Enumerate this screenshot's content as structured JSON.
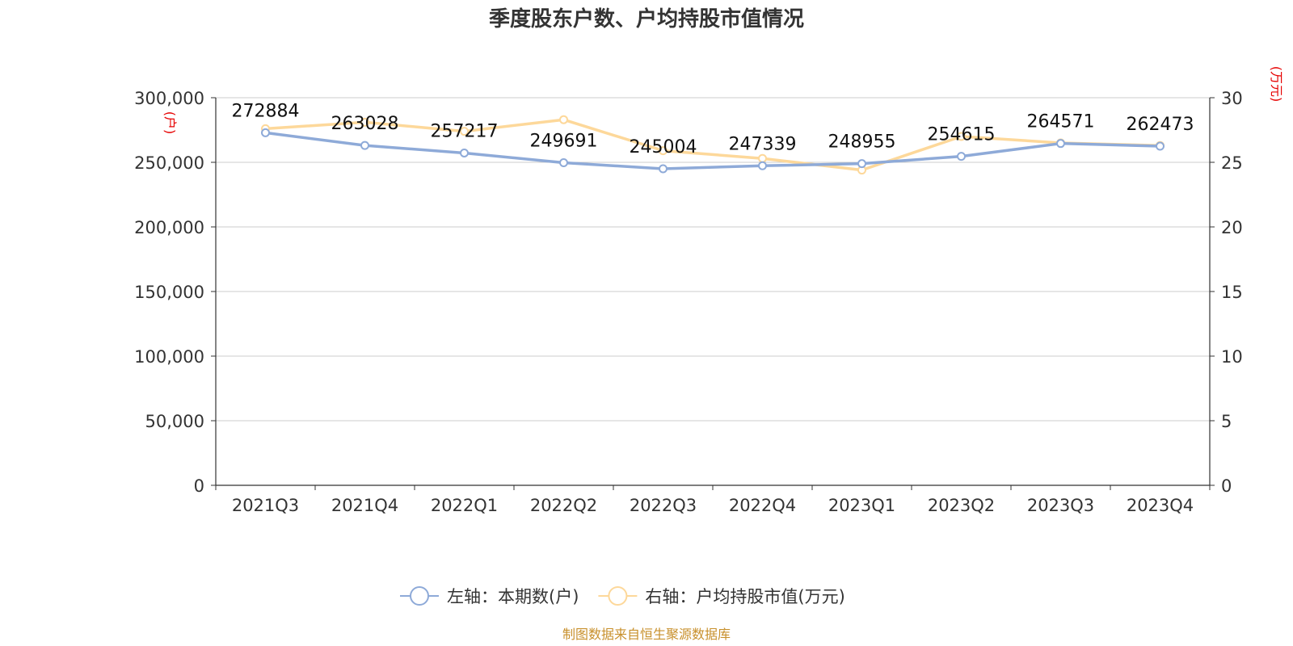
{
  "chart_data": {
    "type": "line",
    "title": "季度股东户数、户均持股市值情况",
    "categories": [
      "2021Q3",
      "2021Q4",
      "2022Q1",
      "2022Q2",
      "2022Q3",
      "2022Q4",
      "2023Q1",
      "2023Q2",
      "2023Q3",
      "2023Q4"
    ],
    "series": [
      {
        "name": "左轴：本期数(户)",
        "axis": "left",
        "color": "#8eaad8",
        "values": [
          272884,
          263028,
          257217,
          249691,
          245004,
          247339,
          248955,
          254615,
          264571,
          262473
        ],
        "data_labels": [
          "272884",
          "263028",
          "257217",
          "249691",
          "245004",
          "247339",
          "248955",
          "254615",
          "264571",
          "262473"
        ]
      },
      {
        "name": "右轴：户均持股市值(万元)",
        "axis": "right",
        "color": "#fdd89a",
        "values": [
          27.6,
          28.1,
          27.4,
          28.3,
          25.9,
          25.3,
          24.4,
          27.0,
          26.5,
          26.3
        ]
      }
    ],
    "left_axis": {
      "unit_label": "(户)",
      "ylim": [
        0,
        300000
      ],
      "ticks": [
        0,
        50000,
        100000,
        150000,
        200000,
        250000,
        300000
      ],
      "tick_labels": [
        "0",
        "50,000",
        "100,000",
        "150,000",
        "200,000",
        "250,000",
        "300,000"
      ]
    },
    "right_axis": {
      "unit_label": "(万元)",
      "ylim": [
        0,
        30
      ],
      "ticks": [
        0,
        5,
        10,
        15,
        20,
        25,
        30
      ],
      "tick_labels": [
        "0",
        "5",
        "10",
        "15",
        "20",
        "25",
        "30"
      ]
    },
    "grid": true,
    "legend_position": "bottom-center",
    "axis_color": "#333333",
    "grid_color": "#cccccc"
  },
  "footer": {
    "source": "制图数据来自恒生聚源数据库"
  }
}
